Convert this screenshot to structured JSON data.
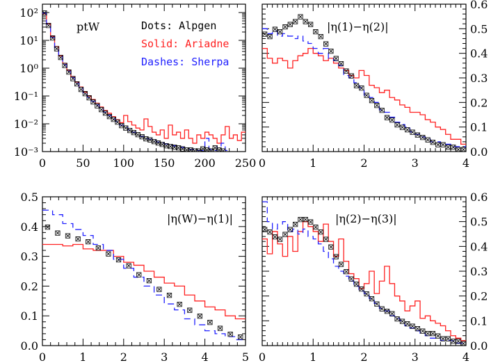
{
  "legend": {
    "dots": "Dots: Alpgen",
    "solid": "Solid: Ariadne",
    "dashes": "Dashes: Sherpa",
    "colors": {
      "alpgen": "#000000",
      "ariadne": "#ff2020",
      "sherpa": "#2020ff"
    }
  },
  "chart_data": [
    {
      "type": "line",
      "title": "ptW",
      "scale_y": "log",
      "xlim": [
        0,
        250
      ],
      "ylim": [
        0.001,
        200
      ],
      "x_ticks": [
        0,
        50,
        100,
        150,
        200,
        250
      ],
      "y_ticks": [
        {
          "value": 0.001,
          "label": "10⁻³"
        },
        {
          "value": 0.01,
          "label": "10⁻²"
        },
        {
          "value": 0.1,
          "label": "10⁻¹"
        },
        {
          "value": 1,
          "label": "10⁰"
        },
        {
          "value": 10,
          "label": "10¹"
        },
        {
          "value": 100,
          "label": "10²"
        }
      ],
      "y_axis_side": "left",
      "bin_width": 5,
      "series": [
        {
          "key": "ariadne",
          "style": "solid",
          "values": [
            90,
            40,
            14,
            6,
            2.8,
            1.5,
            0.85,
            0.5,
            0.32,
            0.21,
            0.14,
            0.1,
            0.075,
            0.055,
            0.04,
            0.03,
            0.024,
            0.018,
            0.014,
            0.011,
            0.02,
            0.012,
            0.009,
            0.007,
            0.006,
            0.015,
            0.008,
            0.005,
            0.004,
            0.006,
            0.003,
            0.009,
            0.004,
            0.005,
            0.003,
            0.006,
            0.003,
            0.002,
            0.004,
            0.003,
            0.005,
            0.004,
            0.003,
            0.002,
            0.004,
            0.008,
            0.003,
            0.004,
            0.0025,
            0.005
          ]
        },
        {
          "key": "sherpa",
          "style": "dashed",
          "values": [
            95,
            38,
            13,
            5.5,
            2.6,
            1.35,
            0.78,
            0.46,
            0.29,
            0.19,
            0.13,
            0.09,
            0.065,
            0.048,
            0.035,
            0.026,
            0.02,
            0.015,
            0.012,
            0.009,
            0.0075,
            0.006,
            0.005,
            0.004,
            0.0035,
            0.003,
            0.0028,
            0.0025,
            0.0022,
            0.002,
            0.0019,
            0.0017,
            0.0016,
            0.0015,
            0.0014,
            0.0013,
            0.0012,
            0.0012,
            0.0011,
            0.0011,
            0.003,
            0.0012,
            0.0011,
            0.0015,
            0.002,
            0.0011
          ]
        },
        {
          "key": "alpgen",
          "style": "dots",
          "values": [
            100,
            36,
            12.5,
            5.2,
            2.5,
            1.3,
            0.75,
            0.44,
            0.28,
            0.18,
            0.125,
            0.088,
            0.063,
            0.046,
            0.034,
            0.025,
            0.019,
            0.015,
            0.012,
            0.009,
            0.0072,
            0.006,
            0.005,
            0.0042,
            0.0036,
            0.003,
            0.0027,
            0.0024,
            0.0021,
            0.0019,
            0.0017,
            0.0016,
            0.0015,
            0.0014,
            0.0013,
            0.0012,
            0.0012,
            0.0011,
            0.0011,
            0.0013,
            0.0012,
            0.0011,
            0.0014,
            0.0012,
            0.0011
          ]
        }
      ]
    },
    {
      "type": "line",
      "title": "|η(1)−η(2)|",
      "scale_y": "linear",
      "xlim": [
        0,
        4
      ],
      "ylim": [
        0,
        0.6
      ],
      "x_ticks": [
        0,
        1,
        2,
        3,
        4
      ],
      "y_ticks": [
        {
          "value": 0,
          "label": "0.0"
        },
        {
          "value": 0.1,
          "label": "0.1"
        },
        {
          "value": 0.2,
          "label": "0.2"
        },
        {
          "value": 0.3,
          "label": "0.3"
        },
        {
          "value": 0.4,
          "label": "0.4"
        },
        {
          "value": 0.5,
          "label": "0.5"
        },
        {
          "value": 0.6,
          "label": "0.6"
        }
      ],
      "y_axis_side": "right",
      "bin_width": 0.1,
      "series": [
        {
          "key": "ariadne",
          "style": "solid",
          "values": [
            0.42,
            0.38,
            0.36,
            0.38,
            0.37,
            0.34,
            0.37,
            0.39,
            0.4,
            0.42,
            0.4,
            0.39,
            0.37,
            0.38,
            0.36,
            0.34,
            0.33,
            0.31,
            0.3,
            0.33,
            0.31,
            0.27,
            0.26,
            0.24,
            0.25,
            0.22,
            0.21,
            0.19,
            0.18,
            0.16,
            0.16,
            0.15,
            0.13,
            0.12,
            0.1,
            0.09,
            0.07,
            0.05,
            0.05,
            0.03
          ]
        },
        {
          "key": "sherpa",
          "style": "dashed",
          "values": [
            0.5,
            0.48,
            0.49,
            0.47,
            0.48,
            0.47,
            0.46,
            0.47,
            0.45,
            0.44,
            0.42,
            0.4,
            0.42,
            0.38,
            0.37,
            0.35,
            0.31,
            0.3,
            0.28,
            0.26,
            0.23,
            0.22,
            0.2,
            0.17,
            0.16,
            0.14,
            0.12,
            0.11,
            0.1,
            0.08,
            0.07,
            0.06,
            0.05,
            0.04,
            0.04,
            0.03,
            0.03,
            0.02,
            0.02,
            0.02
          ]
        },
        {
          "key": "alpgen",
          "style": "dots",
          "values": [
            0.48,
            0.47,
            0.5,
            0.49,
            0.51,
            0.52,
            0.53,
            0.55,
            0.53,
            0.52,
            0.49,
            0.47,
            0.44,
            0.41,
            0.38,
            0.36,
            0.33,
            0.31,
            0.27,
            0.26,
            0.23,
            0.21,
            0.19,
            0.17,
            0.14,
            0.13,
            0.11,
            0.1,
            0.09,
            0.08,
            0.07,
            0.06,
            0.05,
            0.04,
            0.03,
            0.03,
            0.02,
            0.02,
            0.01,
            0.01
          ]
        }
      ]
    },
    {
      "type": "line",
      "title": "|η(W)−η(1)|",
      "scale_y": "linear",
      "xlim": [
        0,
        5
      ],
      "ylim": [
        0,
        0.5
      ],
      "x_ticks": [
        0,
        1,
        2,
        3,
        4,
        5
      ],
      "y_ticks": [
        {
          "value": 0,
          "label": "0.0"
        },
        {
          "value": 0.1,
          "label": "0.1"
        },
        {
          "value": 0.2,
          "label": "0.2"
        },
        {
          "value": 0.3,
          "label": "0.3"
        },
        {
          "value": 0.4,
          "label": "0.4"
        },
        {
          "value": 0.5,
          "label": "0.5"
        }
      ],
      "y_axis_side": "left",
      "bin_width": 0.25,
      "series": [
        {
          "key": "ariadne",
          "style": "solid",
          "values": [
            0.34,
            0.34,
            0.335,
            0.34,
            0.325,
            0.32,
            0.32,
            0.3,
            0.28,
            0.27,
            0.25,
            0.23,
            0.21,
            0.2,
            0.17,
            0.15,
            0.13,
            0.12,
            0.1,
            0.09
          ]
        },
        {
          "key": "sherpa",
          "style": "dashed",
          "values": [
            0.455,
            0.44,
            0.41,
            0.39,
            0.37,
            0.34,
            0.32,
            0.29,
            0.26,
            0.23,
            0.2,
            0.17,
            0.14,
            0.12,
            0.09,
            0.07,
            0.05,
            0.04,
            0.03,
            0.02
          ]
        },
        {
          "key": "alpgen",
          "style": "dots",
          "values": [
            0.4,
            0.38,
            0.37,
            0.36,
            0.35,
            0.33,
            0.31,
            0.29,
            0.27,
            0.24,
            0.22,
            0.19,
            0.17,
            0.14,
            0.12,
            0.1,
            0.08,
            0.06,
            0.04,
            0.03
          ]
        }
      ]
    },
    {
      "type": "line",
      "title": "|η(2)−η(3)|",
      "scale_y": "linear",
      "xlim": [
        0,
        4
      ],
      "ylim": [
        0,
        0.6
      ],
      "x_ticks": [
        0,
        1,
        2,
        3,
        4
      ],
      "y_ticks": [
        {
          "value": 0,
          "label": "0.0"
        },
        {
          "value": 0.1,
          "label": "0.1"
        },
        {
          "value": 0.2,
          "label": "0.2"
        },
        {
          "value": 0.3,
          "label": "0.3"
        },
        {
          "value": 0.4,
          "label": "0.4"
        },
        {
          "value": 0.5,
          "label": "0.5"
        },
        {
          "value": 0.6,
          "label": "0.6"
        }
      ],
      "y_axis_side": "right",
      "bin_width": 0.1,
      "series": [
        {
          "key": "ariadne",
          "style": "solid",
          "values": [
            0.43,
            0.37,
            0.46,
            0.41,
            0.36,
            0.44,
            0.38,
            0.46,
            0.5,
            0.48,
            0.46,
            0.42,
            0.49,
            0.42,
            0.36,
            0.43,
            0.34,
            0.29,
            0.27,
            0.23,
            0.25,
            0.3,
            0.21,
            0.26,
            0.32,
            0.25,
            0.2,
            0.18,
            0.14,
            0.16,
            0.18,
            0.11,
            0.12,
            0.1,
            0.09,
            0.08,
            0.06,
            0.04,
            0.03,
            0.02
          ]
        },
        {
          "key": "sherpa",
          "style": "dashed",
          "values": [
            0.58,
            0.5,
            0.47,
            0.49,
            0.5,
            0.46,
            0.47,
            0.45,
            0.47,
            0.44,
            0.43,
            0.41,
            0.38,
            0.35,
            0.32,
            0.3,
            0.28,
            0.26,
            0.24,
            0.22,
            0.21,
            0.19,
            0.17,
            0.15,
            0.14,
            0.12,
            0.11,
            0.1,
            0.08,
            0.07,
            0.06,
            0.05,
            0.04,
            0.03,
            0.03,
            0.02,
            0.02,
            0.02,
            0.01,
            0.01
          ]
        },
        {
          "key": "alpgen",
          "style": "dots",
          "values": [
            0.47,
            0.46,
            0.44,
            0.43,
            0.45,
            0.47,
            0.49,
            0.51,
            0.51,
            0.5,
            0.48,
            0.46,
            0.43,
            0.4,
            0.36,
            0.33,
            0.3,
            0.27,
            0.25,
            0.23,
            0.21,
            0.19,
            0.17,
            0.15,
            0.14,
            0.13,
            0.11,
            0.1,
            0.09,
            0.08,
            0.07,
            0.06,
            0.05,
            0.05,
            0.04,
            0.03,
            0.03,
            0.02,
            0.02,
            0.01
          ]
        }
      ]
    }
  ]
}
